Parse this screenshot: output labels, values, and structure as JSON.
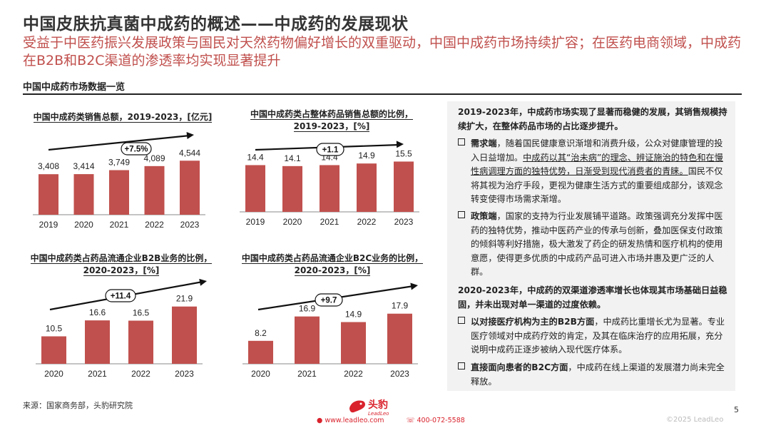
{
  "title": "中国皮肤抗真菌中成药的概述——中成药的发展现状",
  "subtitle": "受益于中医药振兴发展政策与国民对天然药物偏好增长的双重驱动，中国中成药市场持续扩容；在医药电商领域，中成药在B2B和B2C渠道的渗透率均实现显著提升",
  "section_title": "中国中成药市场数据一览",
  "colors": {
    "bar": "#c0504d",
    "accent": "#c0504d"
  },
  "chart_data": [
    {
      "type": "bar",
      "title_line1": "中国中成药类销售总额，2019-2023，[亿元]",
      "title_line2": "",
      "categories": [
        "2019",
        "2020",
        "2021",
        "2022",
        "2023"
      ],
      "values": [
        3408,
        3414,
        3749,
        4089,
        4544
      ],
      "value_labels": [
        "3,408",
        "3,414",
        "3,749",
        "4,089",
        "4,544"
      ],
      "ylim": [
        0,
        6000
      ],
      "growth_label": "+7.5%"
    },
    {
      "type": "bar",
      "title_line1": "中国中成药类占整体药品销售总额的比例，",
      "title_line2": "2019-2023，[%]",
      "categories": [
        "2019",
        "2020",
        "2021",
        "2022",
        "2023"
      ],
      "values": [
        14.4,
        14.1,
        14.4,
        14.9,
        15.5
      ],
      "value_labels": [
        "14.4",
        "14.1",
        "14.4",
        "14.9",
        "15.5"
      ],
      "ylim": [
        0,
        20
      ],
      "growth_label": "+1.1"
    },
    {
      "type": "bar",
      "title_line1": "中国中成药类占药品流通企业B2B业务的比例，",
      "title_line2": "2020-2023，[%]",
      "categories": [
        "2020",
        "2021",
        "2022",
        "2023"
      ],
      "values": [
        10.5,
        16.6,
        16.5,
        21.9
      ],
      "value_labels": [
        "10.5",
        "16.6",
        "16.5",
        "21.9"
      ],
      "ylim": [
        0,
        30
      ],
      "growth_label": "+11.4"
    },
    {
      "type": "bar",
      "title_line1": "中国中成药类占药品流通企业B2C业务的比例，",
      "title_line2": "2020-2023，[%]",
      "categories": [
        "2020",
        "2021",
        "2022",
        "2023"
      ],
      "values": [
        8.2,
        16.9,
        14.9,
        17.9
      ],
      "value_labels": [
        "8.2",
        "16.9",
        "14.9",
        "17.9"
      ],
      "ylim": [
        0,
        27
      ],
      "growth_label": "+9.7"
    }
  ],
  "panel": {
    "lead1": "2019-2023年，中成药市场实现了显著而稳健的发展，其销售规模持续扩大，在整体药品市场的占比逐步提升。",
    "b1_head": "需求端",
    "b1_text_a": "，随着国民健康意识渐增和消费升级，公众对健康管理的投入日益增加。",
    "b1_text_u": "中成药以其“治未病”的理念、辨证施治的特色和在慢性病调理方面的独特优势，日渐受到现代消费者的青睐。",
    "b1_text_b": "国民不仅将其视为治疗手段，更视为健康生活方式的重要组成部分，该观念转变使得市场需求渐增。",
    "b2_head": "政策端",
    "b2_text": "，国家的支持为行业发展铺平道路。政策强调充分发挥中医药的独特优势，推动中医药产业的传承与创新，叠加医保支付政策的倾斜等利好措施，极大激发了药企的研发热情和医疗机构的使用意愿，使得更多优质的中成药产品可进入市场并惠及更广泛的人群。",
    "lead2": "2020-2023年，中成药的双渠道渗透率增长也体现其市场基础日益稳固，并未出现对单一渠道的过度依赖。",
    "b3_head": "以对接医疗机构为主的B2B方面",
    "b3_text": "，中成药比重增长尤为显著。专业医疗领域对中成药疗效的肯定，及其在临床治疗的应用拓展，充分说明中成药正逐步被纳入现代医疗体系。",
    "b4_head": "直接面向患者的B2C方面",
    "b4_text": "，中成药在线上渠道的发展潜力尚未完全释放。"
  },
  "source": "来源：国家商务部，头豹研究院",
  "page_number": "5",
  "copyright": "©2025 LeadLeo",
  "logo": {
    "cn": "头豹",
    "en": "LeadLeo"
  },
  "footer": {
    "website": "www.leadleo.com",
    "phone": "400-072-5588"
  }
}
